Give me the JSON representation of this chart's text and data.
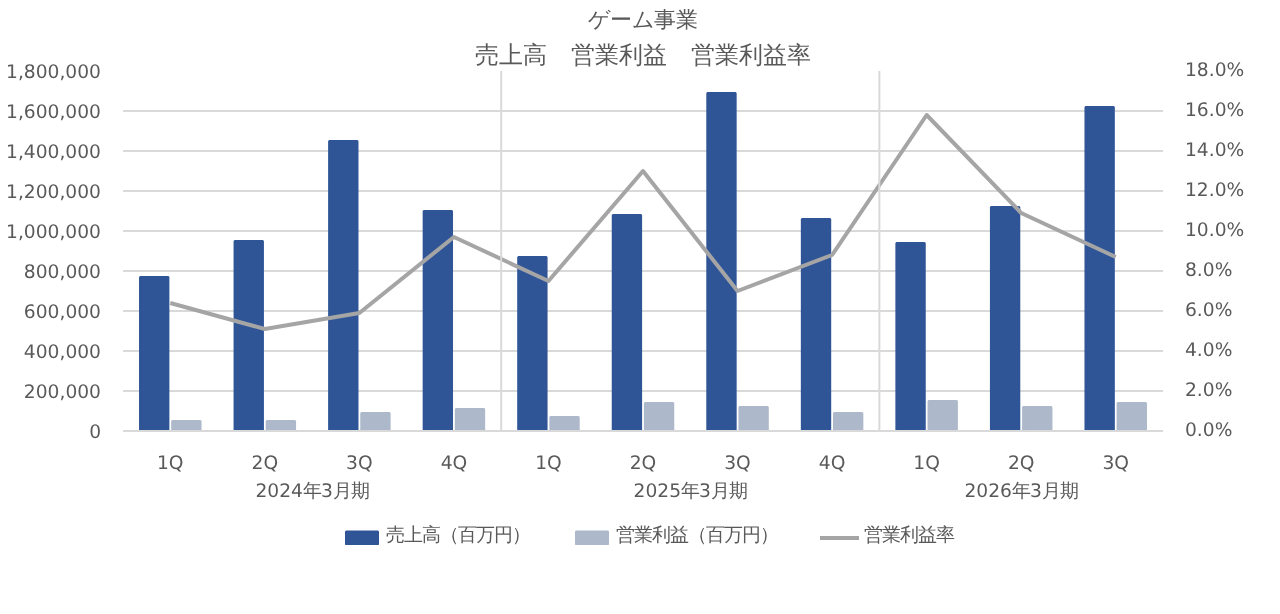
{
  "chart_data": {
    "type": "bar",
    "title": "ゲーム事業",
    "subtitle": "売上高　営業利益　営業利益率",
    "categories": [
      "1Q",
      "2Q",
      "3Q",
      "4Q",
      "1Q",
      "2Q",
      "3Q",
      "4Q",
      "1Q",
      "2Q",
      "3Q"
    ],
    "annotations": [
      "2024年3月期",
      "2025年3月期",
      "2026年3月期"
    ],
    "series": [
      {
        "name": "売上高（百万円）",
        "color": "#2f5597",
        "values": [
          770000,
          950000,
          1450000,
          1100000,
          870000,
          1080000,
          1690000,
          1060000,
          940000,
          1120000,
          1620000
        ]
      },
      {
        "name": "営業利益（百万円）",
        "color": "#adb9ca",
        "values": [
          50000,
          50000,
          90000,
          110000,
          70000,
          140000,
          120000,
          90000,
          150000,
          120000,
          140000
        ]
      },
      {
        "name": "営業利益率",
        "type": "line",
        "axis": "y2",
        "color": "#a5a5a5",
        "values": [
          6.4,
          5.1,
          5.9,
          9.7,
          7.5,
          13.0,
          7.0,
          8.8,
          15.8,
          10.9,
          8.7
        ]
      }
    ],
    "ylim": [
      0,
      1800000
    ],
    "yticks": [
      0,
      {
        "value": 200000,
        "label": "200,000"
      },
      {
        "value": 400000,
        "label": "400,000"
      },
      {
        "value": 600000,
        "label": "600,000"
      },
      {
        "value": 800000,
        "label": "800,000"
      },
      {
        "value": 1000000,
        "label": "1,000,000"
      },
      {
        "value": 1200000,
        "label": "1,200,000"
      },
      {
        "value": 1400000,
        "label": "1,400,000"
      },
      {
        "value": 1600000,
        "label": "1,600,000"
      },
      {
        "value": 1800000,
        "label": "1,800,000"
      }
    ],
    "y2lim": [
      0,
      18
    ],
    "y2ticks": [
      {
        "value": 0,
        "label": "0.0%"
      },
      {
        "value": 2,
        "label": "2.0%"
      },
      {
        "value": 4,
        "label": "4.0%"
      },
      {
        "value": 6,
        "label": "6.0%"
      },
      {
        "value": 8,
        "label": "8.0%"
      },
      {
        "value": 10,
        "label": "10.0%"
      },
      {
        "value": 12,
        "label": "12.0%"
      },
      {
        "value": 14,
        "label": "14.0%"
      },
      {
        "value": 16,
        "label": "16.0%"
      },
      {
        "value": 18,
        "label": "18.0%"
      }
    ],
    "grid": "y",
    "legend": "bottom"
  }
}
